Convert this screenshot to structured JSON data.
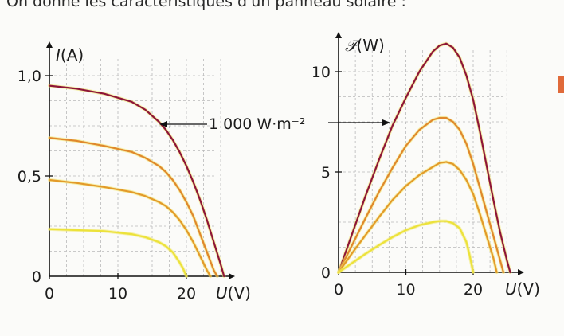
{
  "heading": "On donne les caractéristiques d'un panneau solaire :",
  "annotation": "1 000 W·m⁻²",
  "colors": {
    "top": "#8e1538",
    "mid_high": "#e0882c",
    "mid_low": "#e39a2a",
    "low": "#ece23a",
    "axis": "#111111",
    "grid": "#b9b9b9"
  },
  "chart_data": [
    {
      "type": "line",
      "xlabel_italic": "U",
      "xlabel_unit": "(V)",
      "ylabel_italic": "I",
      "ylabel_unit": "(A)",
      "xlim": [
        0,
        26
      ],
      "ylim": [
        0,
        1.15
      ],
      "xticks": [
        0,
        10,
        20
      ],
      "xtick_labels": [
        "0",
        "10",
        "20"
      ],
      "yticks": [
        0,
        0.5,
        1.0
      ],
      "ytick_labels": [
        "0",
        "0,5",
        "1,0"
      ],
      "grid": true,
      "series": [
        {
          "color_key": "top",
          "x": [
            0,
            4,
            8,
            12,
            14,
            15,
            16,
            17,
            18,
            19,
            20,
            21,
            22,
            23,
            24,
            25,
            25.5
          ],
          "y": [
            0.95,
            0.935,
            0.91,
            0.87,
            0.83,
            0.8,
            0.77,
            0.73,
            0.68,
            0.62,
            0.55,
            0.47,
            0.38,
            0.28,
            0.17,
            0.06,
            0
          ]
        },
        {
          "color_key": "mid_high",
          "x": [
            0,
            4,
            8,
            12,
            14,
            16,
            17,
            18,
            19,
            20,
            21,
            22,
            23,
            24,
            24.5
          ],
          "y": [
            0.69,
            0.675,
            0.65,
            0.62,
            0.59,
            0.55,
            0.52,
            0.48,
            0.43,
            0.37,
            0.3,
            0.21,
            0.12,
            0.03,
            0
          ]
        },
        {
          "color_key": "mid_low",
          "x": [
            0,
            4,
            8,
            12,
            14,
            16,
            17,
            18,
            19,
            20,
            21,
            22,
            23,
            23.5
          ],
          "y": [
            0.48,
            0.465,
            0.445,
            0.42,
            0.4,
            0.37,
            0.35,
            0.32,
            0.28,
            0.23,
            0.17,
            0.1,
            0.03,
            0
          ]
        },
        {
          "color_key": "low",
          "x": [
            0,
            4,
            8,
            12,
            14,
            16,
            17,
            18,
            19,
            19.5,
            20
          ],
          "y": [
            0.235,
            0.23,
            0.225,
            0.21,
            0.195,
            0.17,
            0.15,
            0.12,
            0.07,
            0.04,
            0
          ]
        }
      ]
    },
    {
      "type": "line",
      "xlabel_italic": "U",
      "xlabel_unit": "(V)",
      "ylabel_italic": "𝒫",
      "ylabel_unit": "(W)",
      "xlim": [
        0,
        26
      ],
      "ylim": [
        0,
        12
      ],
      "xticks": [
        0,
        10,
        20
      ],
      "xtick_labels": [
        "0",
        "10",
        "20"
      ],
      "yticks": [
        0,
        5,
        10
      ],
      "ytick_labels": [
        "0",
        "5",
        "10"
      ],
      "grid": true,
      "series": [
        {
          "color_key": "top",
          "x": [
            0,
            2,
            4,
            6,
            8,
            10,
            12,
            14,
            15,
            16,
            17,
            18,
            19,
            20,
            21,
            22,
            23,
            24,
            25,
            25.5
          ],
          "y": [
            0,
            1.9,
            3.8,
            5.6,
            7.3,
            8.7,
            10.0,
            11.0,
            11.3,
            11.4,
            11.2,
            10.7,
            9.8,
            8.6,
            7.0,
            5.3,
            3.6,
            2.0,
            0.6,
            0
          ]
        },
        {
          "color_key": "mid_high",
          "x": [
            0,
            2,
            4,
            6,
            8,
            10,
            12,
            14,
            15,
            16,
            17,
            18,
            19,
            20,
            21,
            22,
            23,
            24,
            24.5
          ],
          "y": [
            0,
            1.35,
            2.7,
            4.0,
            5.2,
            6.3,
            7.1,
            7.6,
            7.7,
            7.7,
            7.5,
            7.1,
            6.4,
            5.4,
            4.2,
            3.0,
            1.8,
            0.6,
            0
          ]
        },
        {
          "color_key": "mid_low",
          "x": [
            0,
            2,
            4,
            6,
            8,
            10,
            12,
            14,
            15,
            16,
            17,
            18,
            19,
            20,
            21,
            22,
            23,
            23.5
          ],
          "y": [
            0,
            0.95,
            1.85,
            2.75,
            3.6,
            4.3,
            4.85,
            5.25,
            5.45,
            5.5,
            5.4,
            5.1,
            4.6,
            3.9,
            2.9,
            1.8,
            0.7,
            0
          ]
        },
        {
          "color_key": "low",
          "x": [
            0,
            2,
            4,
            6,
            8,
            10,
            12,
            14,
            15,
            16,
            17,
            18,
            19,
            19.5,
            20
          ],
          "y": [
            0,
            0.46,
            0.92,
            1.35,
            1.75,
            2.1,
            2.35,
            2.5,
            2.55,
            2.55,
            2.45,
            2.2,
            1.5,
            0.8,
            0
          ]
        }
      ]
    }
  ]
}
